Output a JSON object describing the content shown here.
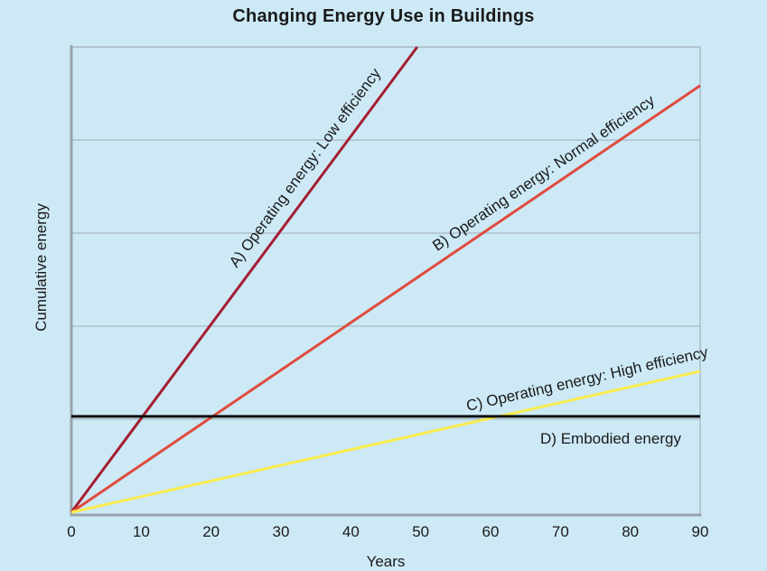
{
  "page": {
    "background": "#CDE9F6",
    "text_color": "#1A1A1A"
  },
  "chart_data": {
    "type": "line",
    "title": "Changing Energy Use in Buildings",
    "xlabel": "Years",
    "ylabel": "Cumulative energy",
    "xlim": [
      0,
      90
    ],
    "ylim": [
      0,
      100
    ],
    "x_ticks": [
      0,
      10,
      20,
      30,
      40,
      50,
      60,
      70,
      80,
      90
    ],
    "y_ticks": [],
    "grid": {
      "horizontal_values": [
        20,
        40,
        60,
        80
      ],
      "vertical": false,
      "color": "#A9B8C2"
    },
    "axis_color": "#9AA3AA",
    "legend_position": "labels-on-lines",
    "series": [
      {
        "label": "A) Operating energy: Low efficiency",
        "color": "#A51E32",
        "x": [
          0,
          49.5
        ],
        "y": [
          0,
          100
        ]
      },
      {
        "label": "B) Operating energy: Normal efficiency",
        "color": "#E04B3E",
        "x": [
          0,
          90
        ],
        "y": [
          0,
          91.7
        ]
      },
      {
        "label": "C) Operating energy: High efficiency",
        "color": "#F8EC4B",
        "x": [
          0,
          90
        ],
        "y": [
          0,
          30.3
        ]
      },
      {
        "label": "D) Embodied energy",
        "color": "#0B0B0B",
        "x": [
          0,
          90
        ],
        "y": [
          20.6,
          20.6
        ]
      }
    ]
  }
}
